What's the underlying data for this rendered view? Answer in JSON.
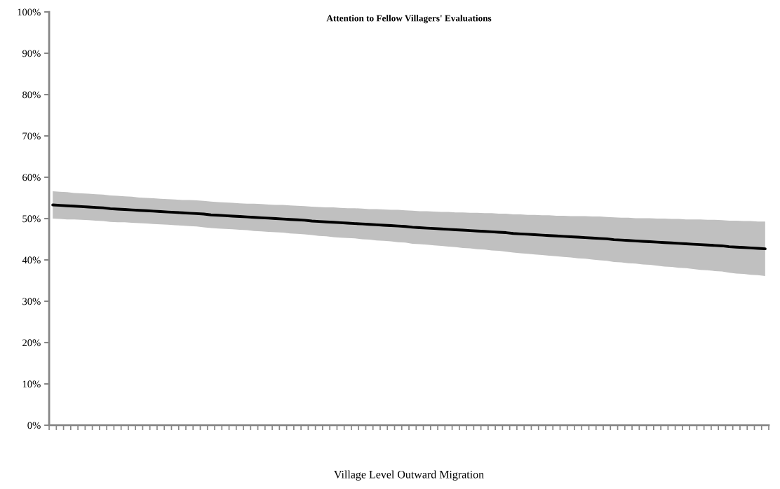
{
  "chart_data": {
    "type": "line",
    "title": "Attention to Fellow Villagers' Evaluations",
    "xlabel": "Village Level Outward Migration",
    "categories": [
      null,
      null,
      null,
      null,
      null,
      null,
      null,
      null,
      null,
      null,
      null,
      null,
      null,
      null,
      null,
      null,
      null,
      null,
      null,
      null,
      null,
      null,
      null,
      null,
      null,
      null,
      null,
      null,
      null,
      null,
      null,
      null,
      null,
      null,
      null,
      null,
      null,
      null,
      null,
      null,
      null,
      null,
      null,
      null,
      null,
      null,
      null,
      null,
      null,
      null,
      null,
      null,
      null,
      null,
      null,
      null,
      null,
      null,
      null,
      null,
      null,
      null,
      null,
      null,
      null,
      null,
      null,
      null,
      null,
      null,
      null,
      null,
      null,
      null,
      null,
      null,
      null,
      null,
      null,
      null,
      null,
      null,
      null,
      null,
      null,
      null,
      null,
      null,
      null,
      null,
      null,
      null,
      null,
      null,
      null,
      null,
      null,
      null,
      null,
      null
    ],
    "series": [
      {
        "color": "#000000",
        "values": [
          53.3,
          53.2,
          53.1,
          53.0,
          52.9,
          52.8,
          52.7,
          52.6,
          52.4,
          52.3,
          52.2,
          52.1,
          52.0,
          51.9,
          51.8,
          51.7,
          51.6,
          51.5,
          51.4,
          51.3,
          51.2,
          51.1,
          50.9,
          50.8,
          50.7,
          50.6,
          50.5,
          50.4,
          50.3,
          50.2,
          50.1,
          50.0,
          49.9,
          49.8,
          49.7,
          49.6,
          49.4,
          49.3,
          49.2,
          49.1,
          49.0,
          48.9,
          48.8,
          48.7,
          48.6,
          48.5,
          48.4,
          48.3,
          48.2,
          48.1,
          47.9,
          47.8,
          47.7,
          47.6,
          47.5,
          47.4,
          47.3,
          47.2,
          47.1,
          47.0,
          46.9,
          46.8,
          46.7,
          46.6,
          46.4,
          46.3,
          46.2,
          46.1,
          46.0,
          45.9,
          45.8,
          45.7,
          45.6,
          45.5,
          45.4,
          45.3,
          45.2,
          45.1,
          44.9,
          44.8,
          44.7,
          44.6,
          44.5,
          44.4,
          44.3,
          44.2,
          44.1,
          44.0,
          43.9,
          43.8,
          43.7,
          43.6,
          43.5,
          43.4,
          43.2,
          43.1,
          43.0,
          42.9,
          42.8,
          42.7
        ],
        "upper": [
          56.6,
          56.5,
          56.4,
          56.2,
          56.1,
          56.0,
          55.9,
          55.8,
          55.6,
          55.5,
          55.4,
          55.3,
          55.1,
          55.0,
          54.9,
          54.8,
          54.7,
          54.6,
          54.5,
          54.5,
          54.4,
          54.3,
          54.1,
          54.0,
          53.9,
          53.8,
          53.7,
          53.6,
          53.6,
          53.5,
          53.4,
          53.3,
          53.3,
          53.2,
          53.1,
          53.0,
          52.9,
          52.8,
          52.7,
          52.7,
          52.6,
          52.5,
          52.5,
          52.4,
          52.3,
          52.3,
          52.2,
          52.1,
          52.1,
          52.0,
          51.9,
          51.8,
          51.8,
          51.7,
          51.6,
          51.6,
          51.5,
          51.5,
          51.4,
          51.4,
          51.3,
          51.3,
          51.2,
          51.2,
          51.0,
          51.0,
          50.9,
          50.9,
          50.8,
          50.8,
          50.7,
          50.7,
          50.6,
          50.6,
          50.6,
          50.5,
          50.5,
          50.4,
          50.3,
          50.2,
          50.2,
          50.1,
          50.1,
          50.1,
          50.0,
          50.0,
          49.9,
          49.9,
          49.8,
          49.8,
          49.8,
          49.7,
          49.7,
          49.6,
          49.5,
          49.5,
          49.4,
          49.4,
          49.3,
          49.3
        ],
        "lower": [
          50.0,
          49.9,
          49.8,
          49.8,
          49.7,
          49.6,
          49.5,
          49.4,
          49.2,
          49.1,
          49.1,
          49.0,
          48.9,
          48.8,
          48.7,
          48.6,
          48.5,
          48.4,
          48.3,
          48.2,
          48.1,
          47.9,
          47.7,
          47.6,
          47.5,
          47.4,
          47.3,
          47.2,
          47.0,
          46.9,
          46.8,
          46.7,
          46.6,
          46.4,
          46.3,
          46.2,
          46.0,
          45.8,
          45.7,
          45.5,
          45.4,
          45.3,
          45.2,
          45.0,
          44.9,
          44.7,
          44.6,
          44.5,
          44.3,
          44.2,
          43.9,
          43.8,
          43.7,
          43.5,
          43.4,
          43.2,
          43.1,
          42.9,
          42.8,
          42.6,
          42.5,
          42.3,
          42.2,
          42.0,
          41.8,
          41.6,
          41.5,
          41.3,
          41.2,
          41.0,
          40.9,
          40.7,
          40.6,
          40.4,
          40.3,
          40.1,
          39.9,
          39.8,
          39.5,
          39.4,
          39.2,
          39.1,
          38.9,
          38.8,
          38.6,
          38.4,
          38.3,
          38.1,
          38.0,
          37.8,
          37.6,
          37.5,
          37.3,
          37.2,
          36.9,
          36.7,
          36.6,
          36.4,
          36.3,
          36.1
        ]
      }
    ],
    "ylim": [
      0,
      100
    ],
    "yticks": [
      {
        "value": 0,
        "label": "0%"
      },
      {
        "value": 10,
        "label": "10%"
      },
      {
        "value": 20,
        "label": "20%"
      },
      {
        "value": 30,
        "label": "30%"
      },
      {
        "value": 40,
        "label": "40%"
      },
      {
        "value": 50,
        "label": "50%"
      },
      {
        "value": 60,
        "label": "60%"
      },
      {
        "value": 70,
        "label": "70%"
      },
      {
        "value": 80,
        "label": "80%"
      },
      {
        "value": 90,
        "label": "90%"
      },
      {
        "value": 100,
        "label": "100%"
      }
    ]
  }
}
